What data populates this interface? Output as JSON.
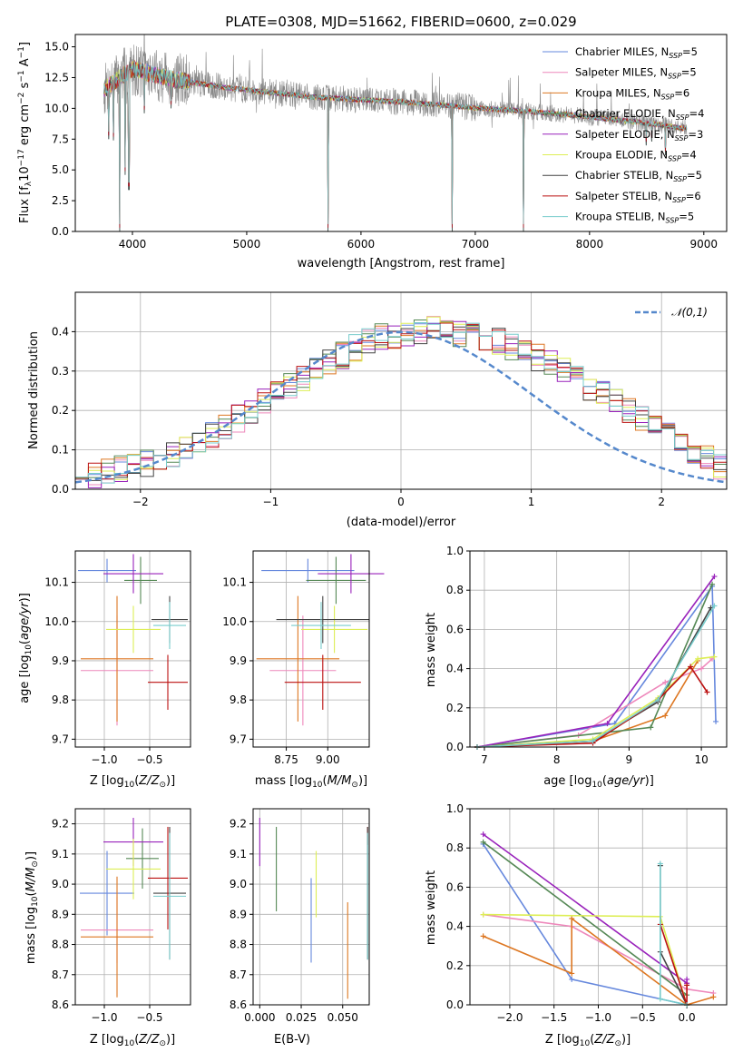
{
  "chart_data": [
    {
      "id": "spectrum",
      "type": "line",
      "title": "PLATE=0308, MJD=51662, FIBERID=0600, z=0.029",
      "xlabel": "wavelength [Angstrom, rest frame]",
      "ylabel": "Flux [f_λ 10^-17 erg cm^-2 s^-1 A^-1]",
      "xlim": [
        3500,
        9200
      ],
      "ylim": [
        0,
        16
      ],
      "xticks": [
        4000,
        5000,
        6000,
        7000,
        8000,
        9000
      ],
      "yticks": [
        0.0,
        2.5,
        5.0,
        7.5,
        10.0,
        12.5,
        15.0
      ],
      "legend_position": "top-right",
      "legend": [
        {
          "name": "Chabrier MILES, N_SSP=5",
          "color": "#6688dd"
        },
        {
          "name": "Salpeter MILES, N_SSP=5",
          "color": "#ee88bb"
        },
        {
          "name": "Kroupa MILES, N_SSP=6",
          "color": "#dd7722"
        },
        {
          "name": "Chabrier ELODIE, N_SSP=4",
          "color": "#558855"
        },
        {
          "name": "Salpeter ELODIE, N_SSP=3",
          "color": "#9922bb"
        },
        {
          "name": "Kroupa ELODIE, N_SSP=4",
          "color": "#ddee55"
        },
        {
          "name": "Chabrier STELIB, N_SSP=5",
          "color": "#444444"
        },
        {
          "name": "Salpeter STELIB, N_SSP=6",
          "color": "#bb1111"
        },
        {
          "name": "Kroupa STELIB, N_SSP=5",
          "color": "#77cccc"
        }
      ],
      "data_color": "#888888",
      "continuum": {
        "x": [
          3750,
          3900,
          4000,
          4100,
          4200,
          4400,
          4600,
          4800,
          5000,
          5200,
          5400,
          5600,
          5800,
          6000,
          6200,
          6400,
          6600,
          6800,
          7000,
          7200,
          7400,
          7600,
          7800,
          8000,
          8200,
          8400,
          8600,
          8800
        ],
        "y": [
          11.5,
          12.6,
          13.2,
          13.0,
          12.7,
          12.3,
          12.0,
          11.7,
          11.5,
          11.3,
          11.1,
          10.9,
          10.8,
          10.7,
          10.6,
          10.5,
          10.35,
          10.2,
          10.05,
          9.9,
          9.8,
          9.65,
          9.5,
          9.3,
          9.1,
          8.9,
          8.7,
          8.4
        ]
      },
      "dips": [
        {
          "x": 3790,
          "y": 7.5
        },
        {
          "x": 3835,
          "y": 7.4
        },
        {
          "x": 3889,
          "y": 0.0
        },
        {
          "x": 3934,
          "y": 4.6
        },
        {
          "x": 3969,
          "y": 3.4
        },
        {
          "x": 4102,
          "y": 9.6
        },
        {
          "x": 4340,
          "y": 10.0
        },
        {
          "x": 5710,
          "y": 0.0
        },
        {
          "x": 6798,
          "y": 0.0
        },
        {
          "x": 7420,
          "y": 0.0
        },
        {
          "x": 8498,
          "y": 7.0
        },
        {
          "x": 8542,
          "y": 7.3
        },
        {
          "x": 8662,
          "y": 6.2
        }
      ]
    },
    {
      "id": "residuals",
      "type": "step",
      "xlabel": "(data-model)/error",
      "ylabel": "Normed distribution",
      "xlim": [
        -2.5,
        2.5
      ],
      "ylim": [
        0,
        0.5
      ],
      "xticks": [
        -2,
        -1,
        0,
        1,
        2
      ],
      "yticks": [
        0.0,
        0.1,
        0.2,
        0.3,
        0.4
      ],
      "legend_position": "top-right",
      "reference_curve": {
        "name": "𝒩(0,1)",
        "color": "#5588cc",
        "style": "dashed"
      },
      "bin_width": 0.1,
      "bins_start": -2.5,
      "profile": [
        0.035,
        0.038,
        0.045,
        0.05,
        0.055,
        0.065,
        0.075,
        0.09,
        0.105,
        0.12,
        0.14,
        0.16,
        0.18,
        0.2,
        0.22,
        0.24,
        0.26,
        0.28,
        0.3,
        0.32,
        0.34,
        0.36,
        0.375,
        0.385,
        0.39,
        0.395,
        0.4,
        0.405,
        0.4,
        0.395,
        0.39,
        0.385,
        0.375,
        0.36,
        0.35,
        0.335,
        0.32,
        0.3,
        0.28,
        0.26,
        0.24,
        0.22,
        0.2,
        0.18,
        0.16,
        0.14,
        0.12,
        0.1,
        0.08,
        0.06
      ]
    },
    {
      "id": "z-vs-age",
      "type": "errorbar",
      "xlabel": "Z [log10(Z/Z⊙)]",
      "ylabel": "age [log10(age/yr)]",
      "xlim": [
        -1.32,
        -0.05
      ],
      "ylim": [
        9.68,
        10.18
      ],
      "xticks": [
        -1.0,
        -0.5
      ],
      "xticklabels": [
        "−1.0",
        "−0.5"
      ],
      "yticks": [
        9.7,
        9.8,
        9.9,
        10.0,
        10.1
      ],
      "points": [
        {
          "color": "#6688dd",
          "x": -0.97,
          "xerr": 0.32,
          "y": 10.13,
          "yerr": 0.03
        },
        {
          "color": "#ee88bb",
          "x": -0.86,
          "xerr": 0.4,
          "y": 9.875,
          "yerr": 0.14
        },
        {
          "color": "#dd7722",
          "x": -0.86,
          "xerr": 0.4,
          "y": 9.905,
          "yerr": 0.16
        },
        {
          "color": "#558855",
          "x": -0.6,
          "xerr": 0.18,
          "y": 10.105,
          "yerr": 0.06
        },
        {
          "color": "#9922bb",
          "x": -0.68,
          "xerr": 0.33,
          "y": 10.122,
          "yerr": 0.05
        },
        {
          "color": "#ddee55",
          "x": -0.68,
          "xerr": 0.3,
          "y": 9.98,
          "yerr": 0.06
        },
        {
          "color": "#444444",
          "x": -0.28,
          "xerr": 0.2,
          "y": 10.005,
          "yerr": 0.06
        },
        {
          "color": "#bb1111",
          "x": -0.3,
          "xerr": 0.22,
          "y": 9.845,
          "yerr": 0.07
        },
        {
          "color": "#77cccc",
          "x": -0.28,
          "xerr": 0.18,
          "y": 9.99,
          "yerr": 0.06
        }
      ]
    },
    {
      "id": "mass-vs-age",
      "type": "errorbar",
      "xlabel": "mass [log10(M/M⊙)]",
      "ylabel": "",
      "xlim": [
        8.55,
        9.25
      ],
      "ylim": [
        9.68,
        10.18
      ],
      "xticks": [
        8.75,
        9.0
      ],
      "xticklabels": [
        "8.75",
        "9.00"
      ],
      "yticks": [
        9.7,
        9.8,
        9.9,
        10.0,
        10.1
      ],
      "points": [
        {
          "color": "#6688dd",
          "x": 8.88,
          "xerr": 0.28,
          "y": 10.13,
          "yerr": 0.03
        },
        {
          "color": "#ee88bb",
          "x": 8.85,
          "xerr": 0.2,
          "y": 9.875,
          "yerr": 0.14
        },
        {
          "color": "#dd7722",
          "x": 8.82,
          "xerr": 0.25,
          "y": 9.905,
          "yerr": 0.16
        },
        {
          "color": "#558855",
          "x": 9.05,
          "xerr": 0.18,
          "y": 10.105,
          "yerr": 0.06
        },
        {
          "color": "#9922bb",
          "x": 9.14,
          "xerr": 0.2,
          "y": 10.122,
          "yerr": 0.05
        },
        {
          "color": "#ddee55",
          "x": 9.04,
          "xerr": 0.2,
          "y": 9.98,
          "yerr": 0.06
        },
        {
          "color": "#444444",
          "x": 8.97,
          "xerr": 0.28,
          "y": 10.005,
          "yerr": 0.06
        },
        {
          "color": "#bb1111",
          "x": 8.97,
          "xerr": 0.23,
          "y": 9.845,
          "yerr": 0.07
        },
        {
          "color": "#77cccc",
          "x": 8.96,
          "xerr": 0.18,
          "y": 9.99,
          "yerr": 0.06
        }
      ]
    },
    {
      "id": "age-vs-massweight",
      "type": "line",
      "xlabel": "age [log10(age/yr)]",
      "ylabel": "mass weight",
      "xlim": [
        6.8,
        10.35
      ],
      "ylim": [
        0,
        1.0
      ],
      "xticks": [
        7,
        8,
        9,
        10
      ],
      "yticks": [
        0.0,
        0.2,
        0.4,
        0.6,
        0.8,
        1.0
      ],
      "series": [
        {
          "color": "#6688dd",
          "x": [
            6.9,
            8.8,
            10.15,
            10.2
          ],
          "y": [
            0.0,
            0.12,
            0.82,
            0.13
          ]
        },
        {
          "color": "#ee88bb",
          "x": [
            6.9,
            8.3,
            9.5,
            10.0,
            10.15
          ],
          "y": [
            0.0,
            0.06,
            0.33,
            0.4,
            0.45
          ]
        },
        {
          "color": "#dd7722",
          "x": [
            6.9,
            8.5,
            9.5,
            9.95
          ],
          "y": [
            0.0,
            0.03,
            0.16,
            0.44
          ]
        },
        {
          "color": "#558855",
          "x": [
            6.9,
            9.3,
            10.15
          ],
          "y": [
            0.0,
            0.1,
            0.83
          ]
        },
        {
          "color": "#9922bb",
          "x": [
            6.9,
            8.7,
            10.18
          ],
          "y": [
            0.0,
            0.12,
            0.87
          ]
        },
        {
          "color": "#ddee55",
          "x": [
            6.9,
            8.5,
            9.4,
            9.95,
            10.18
          ],
          "y": [
            0.0,
            0.04,
            0.25,
            0.45,
            0.46
          ]
        },
        {
          "color": "#444444",
          "x": [
            6.9,
            8.5,
            9.4,
            10.13
          ],
          "y": [
            0.0,
            0.03,
            0.23,
            0.71
          ]
        },
        {
          "color": "#bb1111",
          "x": [
            6.9,
            8.5,
            9.4,
            9.85,
            10.08
          ],
          "y": [
            0.0,
            0.02,
            0.24,
            0.41,
            0.28
          ]
        },
        {
          "color": "#77cccc",
          "x": [
            6.9,
            8.5,
            9.4,
            10.18
          ],
          "y": [
            0.0,
            0.03,
            0.24,
            0.72
          ]
        }
      ]
    },
    {
      "id": "z-vs-mass",
      "type": "errorbar",
      "xlabel": "Z [log10(Z/Z⊙)]",
      "ylabel": "mass [log10(M/M⊙)]",
      "xlim": [
        -1.32,
        -0.05
      ],
      "ylim": [
        8.6,
        9.25
      ],
      "xticks": [
        -1.0,
        -0.5
      ],
      "xticklabels": [
        "−1.0",
        "−0.5"
      ],
      "yticks": [
        8.6,
        8.7,
        8.8,
        8.9,
        9.0,
        9.1,
        9.2
      ],
      "points": [
        {
          "color": "#6688dd",
          "x": -0.97,
          "xerr": 0.3,
          "y": 8.97,
          "yerr": 0.14
        },
        {
          "color": "#ee88bb",
          "x": -0.86,
          "xerr": 0.4,
          "y": 8.848,
          "yerr": 0.11
        },
        {
          "color": "#dd7722",
          "x": -0.86,
          "xerr": 0.4,
          "y": 8.825,
          "yerr": 0.2
        },
        {
          "color": "#558855",
          "x": -0.58,
          "xerr": 0.18,
          "y": 9.085,
          "yerr": 0.1
        },
        {
          "color": "#9922bb",
          "x": -0.68,
          "xerr": 0.33,
          "y": 9.14,
          "yerr": 0.08
        },
        {
          "color": "#ddee55",
          "x": -0.68,
          "xerr": 0.3,
          "y": 9.05,
          "yerr": 0.1
        },
        {
          "color": "#444444",
          "x": -0.28,
          "xerr": 0.18,
          "y": 8.97,
          "yerr": 0.22
        },
        {
          "color": "#bb1111",
          "x": -0.3,
          "xerr": 0.22,
          "y": 9.02,
          "yerr": 0.17
        },
        {
          "color": "#77cccc",
          "x": -0.28,
          "xerr": 0.18,
          "y": 8.96,
          "yerr": 0.21
        }
      ]
    },
    {
      "id": "ebv-vs-mass",
      "type": "errorbar",
      "xlabel": "E(B-V)",
      "ylabel": "",
      "xlim": [
        -0.004,
        0.066
      ],
      "ylim": [
        8.6,
        9.25
      ],
      "xticks": [
        0.0,
        0.025,
        0.05
      ],
      "xticklabels": [
        "0.000",
        "0.025",
        "0.050"
      ],
      "yticks": [
        8.6,
        8.7,
        8.8,
        8.9,
        9.0,
        9.1,
        9.2
      ],
      "points": [
        {
          "color": "#9922bb",
          "x": 0.0,
          "y": 9.14,
          "yerr": 0.08
        },
        {
          "color": "#558855",
          "x": 0.01,
          "y": 9.05,
          "yerr": 0.14
        },
        {
          "color": "#6688dd",
          "x": 0.031,
          "y": 8.88,
          "yerr": 0.14
        },
        {
          "color": "#ddee55",
          "x": 0.034,
          "y": 9.0,
          "yerr": 0.11
        },
        {
          "color": "#dd7722",
          "x": 0.053,
          "y": 8.78,
          "yerr": 0.16
        },
        {
          "color": "#bb1111",
          "x": 0.065,
          "y": 9.16,
          "yerr": 0.03
        },
        {
          "color": "#444444",
          "x": 0.065,
          "y": 8.97,
          "yerr": 0.22
        },
        {
          "color": "#77cccc",
          "x": 0.065,
          "y": 8.96,
          "yerr": 0.21
        }
      ]
    },
    {
      "id": "z-vs-massweight",
      "type": "line",
      "xlabel": "Z [log10(Z/Z⊙)]",
      "ylabel": "mass weight",
      "xlim": [
        -2.45,
        0.45
      ],
      "ylim": [
        0,
        1.0
      ],
      "xticks": [
        -2.0,
        -1.5,
        -1.0,
        -0.5,
        0.0
      ],
      "xticklabels": [
        "−2.0",
        "−1.5",
        "−1.0",
        "−0.5",
        "0.0"
      ],
      "yticks": [
        0.0,
        0.2,
        0.4,
        0.6,
        0.8,
        1.0
      ],
      "series": [
        {
          "color": "#6688dd",
          "x": [
            -2.3,
            -1.3,
            0.0
          ],
          "y": [
            0.82,
            0.13,
            0.0
          ]
        },
        {
          "color": "#ee88bb",
          "x": [
            -2.3,
            -1.3,
            0.0,
            0.3
          ],
          "y": [
            0.46,
            0.4,
            0.08,
            0.06
          ]
        },
        {
          "color": "#dd7722",
          "x": [
            -2.3,
            -1.3,
            -1.3,
            0.0,
            0.3
          ],
          "y": [
            0.35,
            0.16,
            0.44,
            0.0,
            0.04
          ]
        },
        {
          "color": "#558855",
          "x": [
            -2.3,
            0.0
          ],
          "y": [
            0.83,
            0.05
          ]
        },
        {
          "color": "#9922bb",
          "x": [
            -2.3,
            0.0,
            0.0
          ],
          "y": [
            0.87,
            0.11,
            0.13
          ]
        },
        {
          "color": "#ddee55",
          "x": [
            -2.3,
            -0.3,
            0.0
          ],
          "y": [
            0.46,
            0.45,
            0.0
          ]
        },
        {
          "color": "#444444",
          "x": [
            -0.3,
            -0.3,
            0.0
          ],
          "y": [
            0.71,
            0.27,
            0.0
          ]
        },
        {
          "color": "#bb1111",
          "x": [
            -0.3,
            0.0,
            0.0
          ],
          "y": [
            0.41,
            0.0,
            0.1
          ]
        },
        {
          "color": "#77cccc",
          "x": [
            -0.3,
            -0.3,
            0.0
          ],
          "y": [
            0.72,
            0.03,
            0.0
          ]
        }
      ]
    }
  ]
}
